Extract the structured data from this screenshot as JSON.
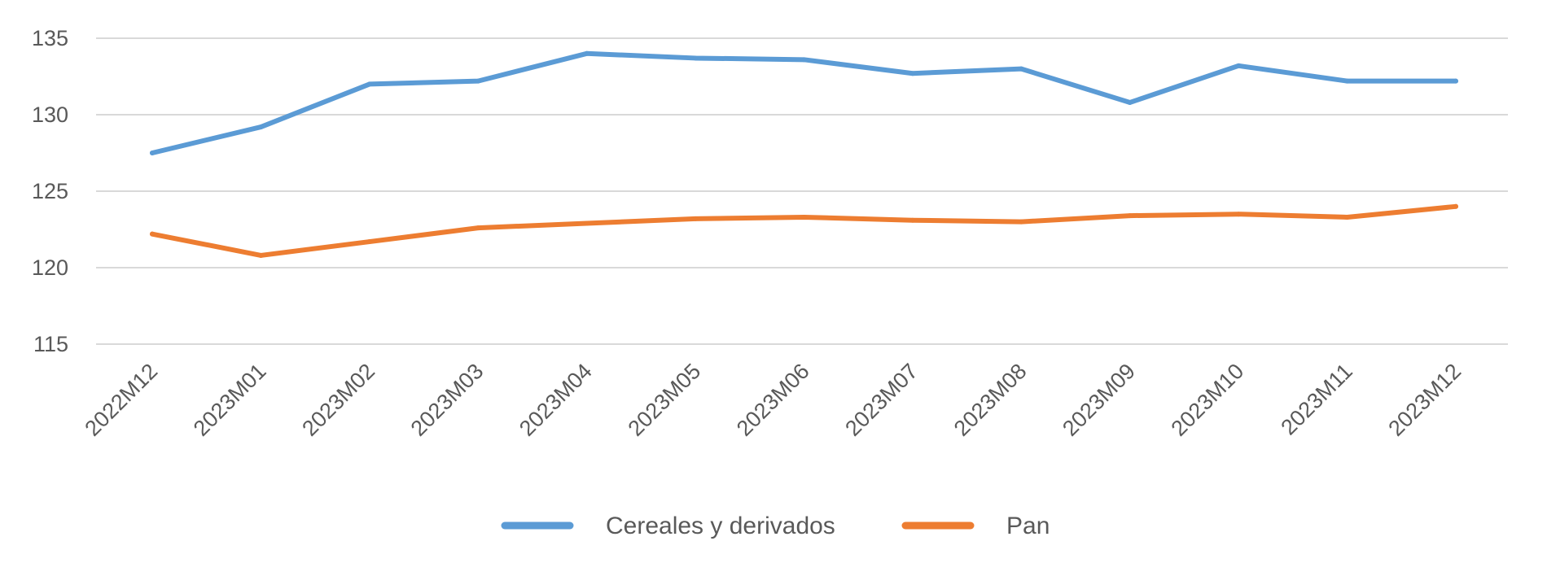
{
  "chart_data": {
    "type": "line",
    "title": "",
    "xlabel": "",
    "ylabel": "",
    "categories": [
      "2022M12",
      "2023M01",
      "2023M02",
      "2023M03",
      "2023M04",
      "2023M05",
      "2023M06",
      "2023M07",
      "2023M08",
      "2023M09",
      "2023M10",
      "2023M11",
      "2023M12"
    ],
    "ylim": [
      115,
      135
    ],
    "yticks": [
      "115",
      "120",
      "125",
      "130",
      "135"
    ],
    "grid": true,
    "legend_position": "bottom",
    "series": [
      {
        "name": "Cereales y derivados",
        "color": "#5B9BD5",
        "values": [
          127.5,
          129.2,
          132.0,
          132.2,
          134.0,
          133.7,
          133.6,
          132.7,
          133.0,
          130.8,
          133.2,
          132.2,
          132.2
        ]
      },
      {
        "name": "Pan",
        "color": "#ED7D31",
        "values": [
          122.2,
          120.8,
          121.7,
          122.6,
          122.9,
          123.2,
          123.3,
          123.1,
          123.0,
          123.4,
          123.5,
          123.3,
          124.0
        ]
      }
    ]
  }
}
